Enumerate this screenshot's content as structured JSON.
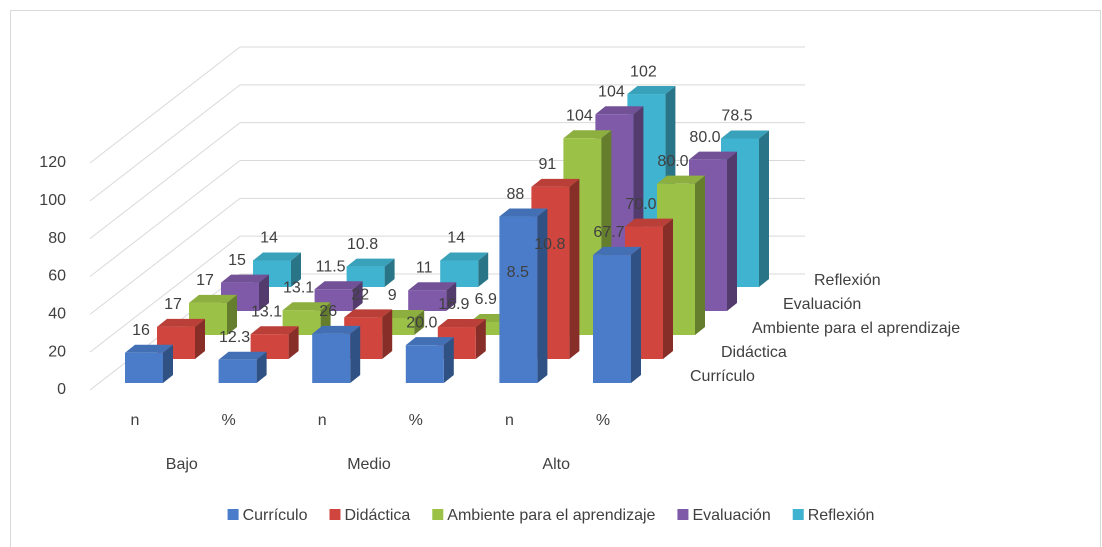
{
  "chart_data": {
    "type": "bar3d",
    "categories": [
      "n",
      "%",
      "n",
      "%",
      "n",
      "%"
    ],
    "groups": [
      "Bajo",
      "Medio",
      "Alto"
    ],
    "series": [
      {
        "name": "Currículo",
        "color": "#4a7cc9",
        "values": [
          16,
          12.3,
          26,
          20.0,
          88,
          67.7
        ],
        "value_labels": [
          "16",
          "12.3",
          "26",
          "20.0",
          "88",
          "67.7"
        ]
      },
      {
        "name": "Didáctica",
        "color": "#d0463f",
        "values": [
          17,
          13.1,
          22,
          16.9,
          91,
          70.0
        ],
        "value_labels": [
          "17",
          "13.1",
          "22",
          "16.9",
          "91",
          "70.0"
        ]
      },
      {
        "name": "Ambiente para el aprendizaje",
        "color": "#9bc246",
        "values": [
          17,
          13.1,
          9,
          6.9,
          104,
          80.0
        ],
        "value_labels": [
          "17",
          "13.1",
          "9",
          "6.9",
          "104",
          "80.0"
        ]
      },
      {
        "name": "Evaluación",
        "color": "#7f5aa8",
        "values": [
          15,
          11.5,
          11,
          8.5,
          104,
          80.0
        ],
        "value_labels": [
          "15",
          "11.5",
          "11",
          "8.5",
          "104",
          "80.0"
        ]
      },
      {
        "name": "Reflexión",
        "color": "#3fb3cf",
        "values": [
          14,
          10.8,
          14,
          10.8,
          102,
          78.5
        ],
        "value_labels": [
          "14",
          "10.8",
          "14",
          "10.8",
          "102",
          "78.5"
        ]
      }
    ],
    "ylim": [
      0,
      120
    ],
    "yticks": [
      0,
      20,
      40,
      60,
      80,
      100,
      120
    ],
    "grid": true
  }
}
